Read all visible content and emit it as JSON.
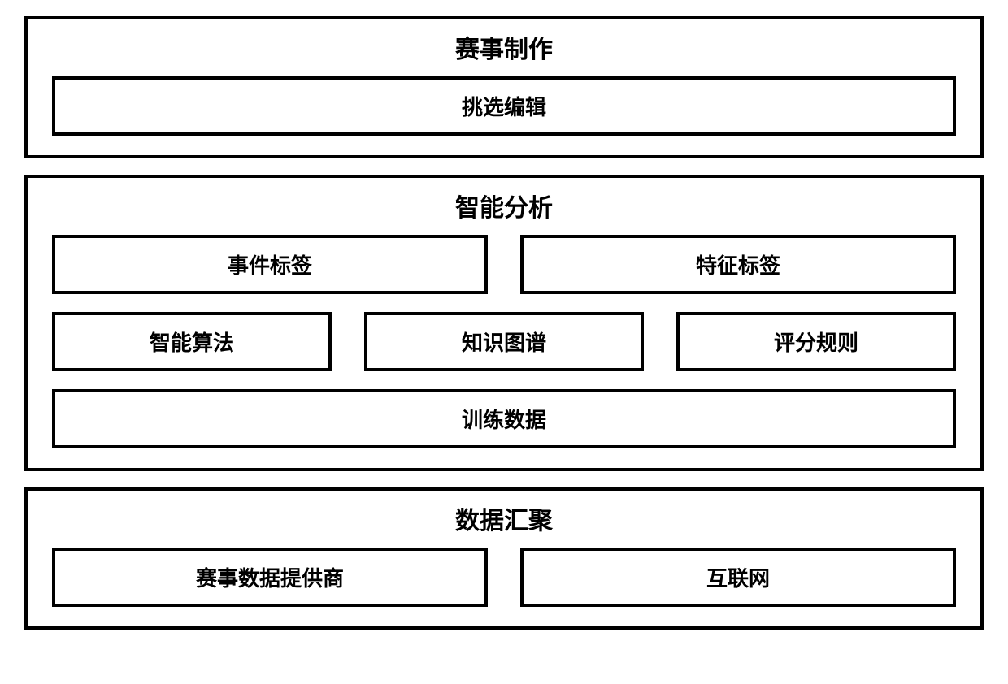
{
  "diagram": {
    "type": "block-diagram",
    "background_color": "#ffffff",
    "border_color": "#000000",
    "border_width": 4,
    "text_color": "#000000",
    "title_fontsize": 30,
    "box_fontsize": 26,
    "font_weight": "bold",
    "sections": [
      {
        "title": "赛事制作",
        "rows": [
          {
            "layout": "single-centered",
            "boxes": [
              "挑选编辑"
            ]
          }
        ]
      },
      {
        "title": "智能分析",
        "rows": [
          {
            "layout": "two",
            "boxes": [
              "事件标签",
              "特征标签"
            ]
          },
          {
            "layout": "three",
            "boxes": [
              "智能算法",
              "知识图谱",
              "评分规则"
            ]
          },
          {
            "layout": "full",
            "boxes": [
              "训练数据"
            ]
          }
        ]
      },
      {
        "title": "数据汇聚",
        "rows": [
          {
            "layout": "two",
            "boxes": [
              "赛事数据提供商",
              "互联网"
            ]
          }
        ]
      }
    ]
  }
}
